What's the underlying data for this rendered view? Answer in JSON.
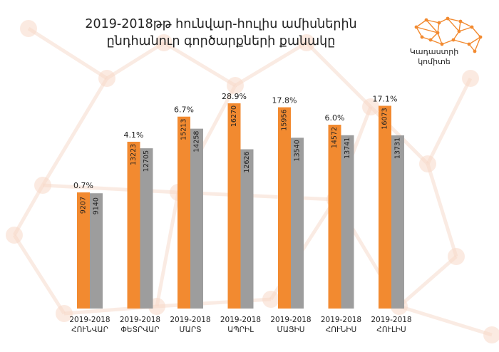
{
  "colors": {
    "series_2019": "#f28a30",
    "series_2018": "#9d9d9d",
    "background_network": "#f7d9c9",
    "logo": "#f28a30"
  },
  "logo": {
    "icon": "network-logo-icon",
    "line1": "Կադաստրի",
    "line2": "կոմիտե"
  },
  "chart_data": {
    "type": "bar",
    "title": "2019-2018թթ հունվար-հուլիս ամիսներին ընդհանուր գործարքների քանակը",
    "title_lines": [
      "2019-2018թթ հունվար-հուլիս ամիսներին",
      "ընդհանուր գործարքների քանակը"
    ],
    "categories": [
      {
        "top": "2019-2018",
        "bottom": "ՀՈՒՆՎԱՐ"
      },
      {
        "top": "2019-2018",
        "bottom": "ՓԵՏՐՎԱՐ"
      },
      {
        "top": "2019-2018",
        "bottom": "ՄԱՐՏ"
      },
      {
        "top": "2019-2018",
        "bottom": "ԱՊՐԻԼ"
      },
      {
        "top": "2019-2018",
        "bottom": "ՄԱՅԻՍ"
      },
      {
        "top": "2019-2018",
        "bottom": "ՀՈՒՆԻՍ"
      },
      {
        "top": "2019-2018",
        "bottom": "ՀՈՒԼԻՍ"
      }
    ],
    "series": [
      {
        "values": [
          9207,
          13223,
          15213,
          16270,
          15956,
          14572,
          16073
        ]
      },
      {
        "values": [
          9140,
          12705,
          14258,
          12626,
          13540,
          13741,
          13731
        ]
      }
    ],
    "change_labels": [
      "0.7%",
      "4.1%",
      "6.7%",
      "28.9%",
      "17.8%",
      "6.0%",
      "17.1%"
    ],
    "ylim": [
      0,
      17000
    ],
    "grid": false,
    "legend": "none"
  }
}
